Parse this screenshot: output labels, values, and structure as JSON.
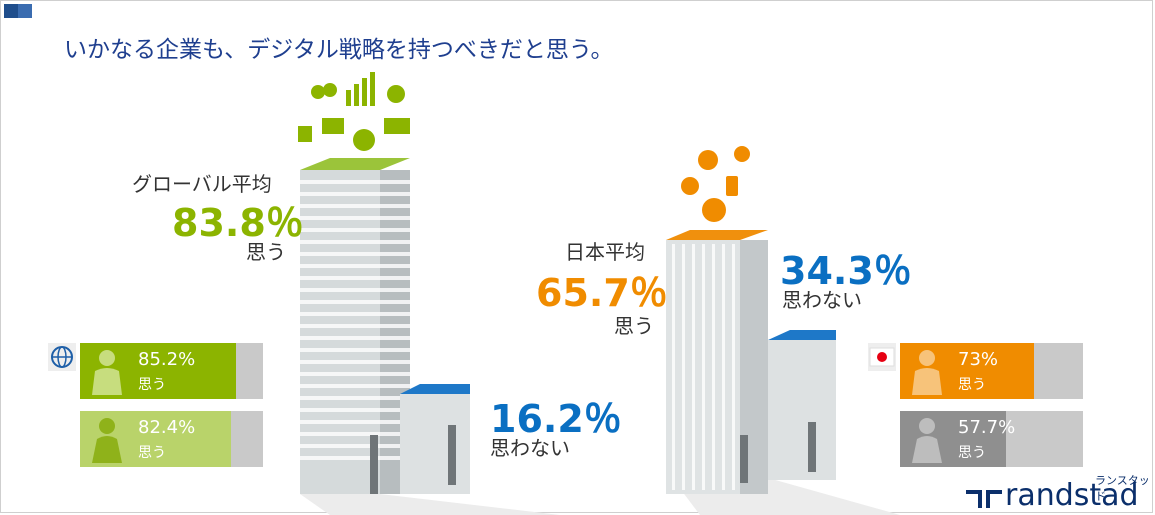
{
  "headline": "いかなる企業も、デジタル戦略を持つべきだと思う。",
  "global": {
    "label": "グローバル平均",
    "yes_pct": "83.8％",
    "yes_label": "思う",
    "no_pct": "16.2％",
    "no_label": "思わない",
    "male": {
      "pct": "85.2%",
      "label": "思う",
      "value": 85.2
    },
    "female": {
      "pct": "82.4%",
      "label": "思う",
      "value": 82.4
    }
  },
  "japan": {
    "label": "日本平均",
    "yes_pct": "65.7％",
    "yes_label": "思う",
    "no_pct": "34.3％",
    "no_label": "思わない",
    "male": {
      "pct": "73%",
      "label": "思う",
      "value": 73
    },
    "female": {
      "pct": "57.7%",
      "label": "思う",
      "value": 57.7
    }
  },
  "logo": {
    "kana": "ランスタッド",
    "name": "randstad"
  },
  "colors": {
    "green": "#8cb400",
    "light_green": "#a7c641",
    "orange": "#f08c00",
    "gray": "#8f8f8f",
    "blue": "#0a6fc2",
    "navy": "#1f3f8f"
  }
}
